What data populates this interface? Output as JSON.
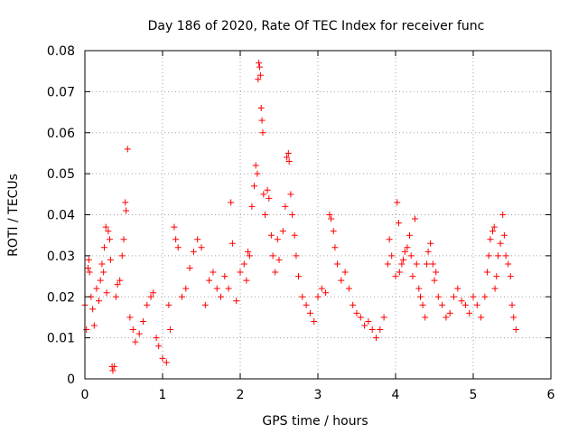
{
  "chart_data": {
    "type": "scatter",
    "title": "Day 186 of 2020, Rate Of TEC Index for receiver func",
    "xlabel": "GPS time / hours",
    "ylabel": "ROTI / TECUs",
    "xlim": [
      0,
      6
    ],
    "ylim": [
      0,
      0.08
    ],
    "x_ticks": [
      "0",
      "1",
      "2",
      "3",
      "4",
      "5",
      "6"
    ],
    "y_ticks": [
      "0",
      "0.01",
      "0.02",
      "0.03",
      "0.04",
      "0.05",
      "0.06",
      "0.07",
      "0.08"
    ],
    "x_tick_values": [
      0,
      1,
      2,
      3,
      4,
      5,
      6
    ],
    "y_tick_values": [
      0,
      0.01,
      0.02,
      0.03,
      0.04,
      0.05,
      0.06,
      0.07,
      0.08
    ],
    "grid": true,
    "marker": "+",
    "marker_color": "#ff0000",
    "series": [
      {
        "name": "",
        "points": [
          [
            0.0,
            0.018
          ],
          [
            0.02,
            0.012
          ],
          [
            0.04,
            0.027
          ],
          [
            0.05,
            0.029
          ],
          [
            0.06,
            0.026
          ],
          [
            0.08,
            0.02
          ],
          [
            0.1,
            0.017
          ],
          [
            0.12,
            0.013
          ],
          [
            0.15,
            0.022
          ],
          [
            0.18,
            0.019
          ],
          [
            0.2,
            0.024
          ],
          [
            0.22,
            0.028
          ],
          [
            0.24,
            0.026
          ],
          [
            0.25,
            0.032
          ],
          [
            0.27,
            0.037
          ],
          [
            0.3,
            0.036
          ],
          [
            0.32,
            0.034
          ],
          [
            0.33,
            0.029
          ],
          [
            0.28,
            0.021
          ],
          [
            0.35,
            0.003
          ],
          [
            0.36,
            0.002
          ],
          [
            0.38,
            0.003
          ],
          [
            0.4,
            0.02
          ],
          [
            0.42,
            0.023
          ],
          [
            0.45,
            0.024
          ],
          [
            0.48,
            0.03
          ],
          [
            0.5,
            0.034
          ],
          [
            0.52,
            0.043
          ],
          [
            0.53,
            0.041
          ],
          [
            0.55,
            0.056
          ],
          [
            0.58,
            0.015
          ],
          [
            0.62,
            0.012
          ],
          [
            0.65,
            0.009
          ],
          [
            0.7,
            0.011
          ],
          [
            0.75,
            0.014
          ],
          [
            0.8,
            0.018
          ],
          [
            0.85,
            0.02
          ],
          [
            0.88,
            0.021
          ],
          [
            0.92,
            0.01
          ],
          [
            0.95,
            0.008
          ],
          [
            1.0,
            0.005
          ],
          [
            1.05,
            0.004
          ],
          [
            1.08,
            0.018
          ],
          [
            1.1,
            0.012
          ],
          [
            1.15,
            0.037
          ],
          [
            1.17,
            0.034
          ],
          [
            1.2,
            0.032
          ],
          [
            1.25,
            0.02
          ],
          [
            1.3,
            0.022
          ],
          [
            1.35,
            0.027
          ],
          [
            1.4,
            0.031
          ],
          [
            1.45,
            0.034
          ],
          [
            1.5,
            0.032
          ],
          [
            1.55,
            0.018
          ],
          [
            1.6,
            0.024
          ],
          [
            1.65,
            0.026
          ],
          [
            1.7,
            0.022
          ],
          [
            1.75,
            0.02
          ],
          [
            1.8,
            0.025
          ],
          [
            1.85,
            0.022
          ],
          [
            1.88,
            0.043
          ],
          [
            1.9,
            0.033
          ],
          [
            1.95,
            0.019
          ],
          [
            2.0,
            0.026
          ],
          [
            2.05,
            0.028
          ],
          [
            2.08,
            0.024
          ],
          [
            2.1,
            0.031
          ],
          [
            2.12,
            0.03
          ],
          [
            2.15,
            0.042
          ],
          [
            2.18,
            0.047
          ],
          [
            2.2,
            0.052
          ],
          [
            2.22,
            0.05
          ],
          [
            2.23,
            0.073
          ],
          [
            2.24,
            0.077
          ],
          [
            2.25,
            0.076
          ],
          [
            2.26,
            0.074
          ],
          [
            2.27,
            0.066
          ],
          [
            2.28,
            0.063
          ],
          [
            2.29,
            0.06
          ],
          [
            2.3,
            0.045
          ],
          [
            2.32,
            0.04
          ],
          [
            2.35,
            0.046
          ],
          [
            2.37,
            0.044
          ],
          [
            2.4,
            0.035
          ],
          [
            2.42,
            0.03
          ],
          [
            2.45,
            0.026
          ],
          [
            2.48,
            0.034
          ],
          [
            2.5,
            0.029
          ],
          [
            2.55,
            0.036
          ],
          [
            2.58,
            0.042
          ],
          [
            2.6,
            0.054
          ],
          [
            2.62,
            0.055
          ],
          [
            2.63,
            0.053
          ],
          [
            2.65,
            0.045
          ],
          [
            2.67,
            0.04
          ],
          [
            2.7,
            0.035
          ],
          [
            2.72,
            0.03
          ],
          [
            2.75,
            0.025
          ],
          [
            2.8,
            0.02
          ],
          [
            2.85,
            0.018
          ],
          [
            2.9,
            0.016
          ],
          [
            2.95,
            0.014
          ],
          [
            3.0,
            0.02
          ],
          [
            3.05,
            0.022
          ],
          [
            3.1,
            0.021
          ],
          [
            3.15,
            0.04
          ],
          [
            3.17,
            0.039
          ],
          [
            3.2,
            0.036
          ],
          [
            3.22,
            0.032
          ],
          [
            3.25,
            0.028
          ],
          [
            3.3,
            0.024
          ],
          [
            3.35,
            0.026
          ],
          [
            3.4,
            0.022
          ],
          [
            3.45,
            0.018
          ],
          [
            3.5,
            0.016
          ],
          [
            3.55,
            0.015
          ],
          [
            3.6,
            0.013
          ],
          [
            3.65,
            0.014
          ],
          [
            3.7,
            0.012
          ],
          [
            3.75,
            0.01
          ],
          [
            3.8,
            0.012
          ],
          [
            3.85,
            0.015
          ],
          [
            3.9,
            0.028
          ],
          [
            3.92,
            0.034
          ],
          [
            3.95,
            0.03
          ],
          [
            4.0,
            0.025
          ],
          [
            4.02,
            0.043
          ],
          [
            4.04,
            0.038
          ],
          [
            4.05,
            0.026
          ],
          [
            4.08,
            0.028
          ],
          [
            4.1,
            0.029
          ],
          [
            4.12,
            0.031
          ],
          [
            4.15,
            0.032
          ],
          [
            4.18,
            0.035
          ],
          [
            4.2,
            0.03
          ],
          [
            4.22,
            0.025
          ],
          [
            4.25,
            0.039
          ],
          [
            4.27,
            0.028
          ],
          [
            4.3,
            0.022
          ],
          [
            4.32,
            0.02
          ],
          [
            4.35,
            0.018
          ],
          [
            4.38,
            0.015
          ],
          [
            4.4,
            0.028
          ],
          [
            4.42,
            0.031
          ],
          [
            4.45,
            0.033
          ],
          [
            4.48,
            0.028
          ],
          [
            4.5,
            0.024
          ],
          [
            4.52,
            0.026
          ],
          [
            4.55,
            0.02
          ],
          [
            4.6,
            0.018
          ],
          [
            4.65,
            0.015
          ],
          [
            4.7,
            0.016
          ],
          [
            4.75,
            0.02
          ],
          [
            4.8,
            0.022
          ],
          [
            4.85,
            0.019
          ],
          [
            4.9,
            0.018
          ],
          [
            4.95,
            0.016
          ],
          [
            5.0,
            0.02
          ],
          [
            5.05,
            0.018
          ],
          [
            5.1,
            0.015
          ],
          [
            5.15,
            0.02
          ],
          [
            5.18,
            0.026
          ],
          [
            5.2,
            0.03
          ],
          [
            5.22,
            0.034
          ],
          [
            5.25,
            0.036
          ],
          [
            5.27,
            0.037
          ],
          [
            5.28,
            0.022
          ],
          [
            5.3,
            0.025
          ],
          [
            5.32,
            0.03
          ],
          [
            5.35,
            0.033
          ],
          [
            5.38,
            0.04
          ],
          [
            5.4,
            0.035
          ],
          [
            5.42,
            0.03
          ],
          [
            5.45,
            0.028
          ],
          [
            5.48,
            0.025
          ],
          [
            5.5,
            0.018
          ],
          [
            5.52,
            0.015
          ],
          [
            5.55,
            0.012
          ]
        ]
      }
    ]
  }
}
